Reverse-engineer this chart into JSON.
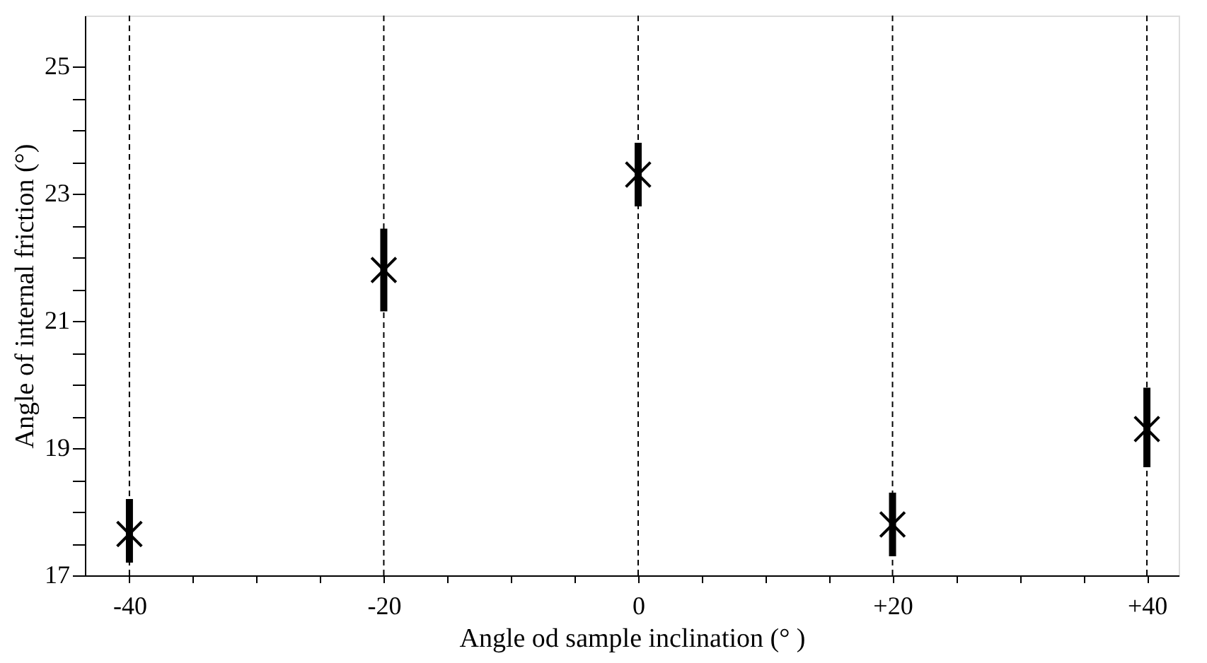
{
  "chart_data": {
    "type": "scatter",
    "xlabel": "Angle od sample inclination (° )",
    "ylabel": "Angle of internal friction  (°)",
    "x": [
      -40,
      -20,
      0,
      20,
      40
    ],
    "series": [
      {
        "color": "#000000",
        "values": [
          17.65,
          21.8,
          23.3,
          17.8,
          19.3
        ],
        "errors": [
          [
            17.2,
            18.2
          ],
          [
            21.15,
            22.45
          ],
          [
            22.8,
            23.8
          ],
          [
            17.3,
            18.3
          ],
          [
            18.7,
            19.95
          ]
        ]
      }
    ],
    "marker": "cross",
    "xlim": [
      -43.5,
      42.5
    ],
    "xticks": [
      {
        "value": -40,
        "label": "-40"
      },
      {
        "value": -35,
        "label": null
      },
      {
        "value": -30,
        "label": null
      },
      {
        "value": -25,
        "label": null
      },
      {
        "value": -20,
        "label": "-20"
      },
      {
        "value": -15,
        "label": null
      },
      {
        "value": -10,
        "label": null
      },
      {
        "value": -5,
        "label": null
      },
      {
        "value": 0,
        "label": "0"
      },
      {
        "value": 5,
        "label": null
      },
      {
        "value": 10,
        "label": null
      },
      {
        "value": 15,
        "label": null
      },
      {
        "value": 20,
        "label": "+20"
      },
      {
        "value": 25,
        "label": null
      },
      {
        "value": 30,
        "label": null
      },
      {
        "value": 35,
        "label": null
      },
      {
        "value": 40,
        "label": "+40"
      }
    ],
    "ylim": [
      17,
      25.8
    ],
    "yticks": [
      17,
      {
        "value": 17.5,
        "label": null
      },
      {
        "value": 18,
        "label": null
      },
      {
        "value": 18.5,
        "label": null
      },
      19,
      {
        "value": 19.5,
        "label": null
      },
      {
        "value": 20,
        "label": null
      },
      {
        "value": 20.5,
        "label": null
      },
      21,
      {
        "value": 21.5,
        "label": null
      },
      {
        "value": 22,
        "label": null
      },
      {
        "value": 22.5,
        "label": null
      },
      23,
      {
        "value": 23.5,
        "label": null
      },
      {
        "value": 24,
        "label": null
      },
      {
        "value": 24.5,
        "label": null
      },
      25
    ],
    "ref_lines": [
      {
        "axis": "x",
        "value": -40,
        "label": null,
        "color": "#000000",
        "line_style": "dashed"
      },
      {
        "axis": "x",
        "value": -20,
        "label": null,
        "color": "#000000",
        "line_style": "dashed"
      },
      {
        "axis": "x",
        "value": 0,
        "label": null,
        "color": "#000000",
        "line_style": "dashed"
      },
      {
        "axis": "x",
        "value": 20,
        "label": null,
        "color": "#000000",
        "line_style": "dashed"
      },
      {
        "axis": "x",
        "value": 40,
        "label": null,
        "color": "#000000",
        "line_style": "dashed"
      }
    ],
    "grid": false
  }
}
